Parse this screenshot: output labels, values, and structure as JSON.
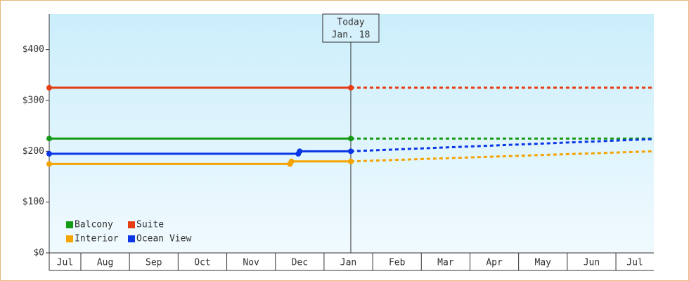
{
  "chart_data": {
    "type": "line",
    "categories": [
      "Jul",
      "Aug",
      "Sep",
      "Oct",
      "Nov",
      "Dec",
      "Jan",
      "Feb",
      "Mar",
      "Apr",
      "May",
      "Jun",
      "Jul"
    ],
    "xlim": [
      0.35,
      12.78
    ],
    "ylim": [
      0,
      470
    ],
    "yticks": [
      {
        "value": 0,
        "label": "$0"
      },
      {
        "value": 100,
        "label": "$100"
      },
      {
        "value": 200,
        "label": "$200"
      },
      {
        "value": 300,
        "label": "$300"
      },
      {
        "value": 400,
        "label": "$400"
      }
    ],
    "annotation": {
      "x": 6.55,
      "lines": [
        "Today",
        "Jan. 18"
      ]
    },
    "series": [
      {
        "name": "Balcony",
        "color": "#159a15",
        "x": [
          0.35,
          6.55
        ],
        "values": [
          225,
          225
        ],
        "forecast": {
          "x": [
            6.55,
            12.78
          ],
          "values": [
            225,
            225
          ]
        }
      },
      {
        "name": "Suite",
        "color": "#e63c12",
        "x": [
          0.35,
          6.55
        ],
        "values": [
          325,
          325
        ],
        "forecast": {
          "x": [
            6.55,
            12.78
          ],
          "values": [
            325,
            325
          ]
        }
      },
      {
        "name": "Interior",
        "color": "#f5a300",
        "x": [
          0.35,
          5.3,
          5.33,
          6.55
        ],
        "values": [
          175,
          175,
          180,
          180
        ],
        "forecast": {
          "x": [
            6.55,
            12.78
          ],
          "values": [
            180,
            200
          ]
        }
      },
      {
        "name": "Ocean View",
        "color": "#0a36e6",
        "x": [
          0.35,
          5.47,
          5.5,
          6.55
        ],
        "values": [
          195,
          195,
          200,
          200
        ],
        "forecast": {
          "x": [
            6.55,
            12.78
          ],
          "values": [
            200,
            224
          ]
        }
      }
    ]
  }
}
